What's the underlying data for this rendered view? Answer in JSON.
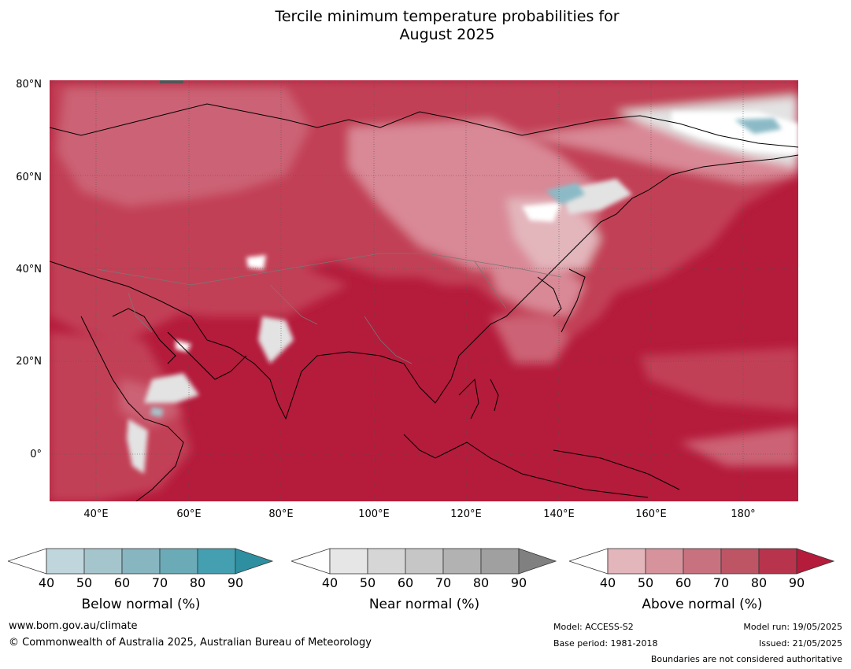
{
  "title": {
    "line1": "Tercile minimum temperature probabilities for",
    "line2": "August 2025"
  },
  "axes": {
    "lat_labels": [
      "80°N",
      "60°N",
      "40°N",
      "20°N",
      "0°"
    ],
    "lon_labels": [
      "40°E",
      "60°E",
      "80°E",
      "100°E",
      "120°E",
      "140°E",
      "160°E",
      "180°"
    ]
  },
  "legend": {
    "below": {
      "label": "Below normal (%)",
      "ticks": [
        "40",
        "50",
        "60",
        "70",
        "80",
        "90"
      ],
      "colors": [
        "#ffffff",
        "#c0d6dd",
        "#a5c5cc",
        "#87b5c0",
        "#6aabb7",
        "#44a0b0",
        "#2e8fa0"
      ]
    },
    "near": {
      "label": "Near normal (%)",
      "ticks": [
        "40",
        "50",
        "60",
        "70",
        "80",
        "90"
      ],
      "colors": [
        "#ffffff",
        "#e6e6e6",
        "#d6d6d6",
        "#c6c6c6",
        "#b2b2b2",
        "#a0a0a0",
        "#808080"
      ]
    },
    "above": {
      "label": "Above normal (%)",
      "ticks": [
        "40",
        "50",
        "60",
        "70",
        "80",
        "90"
      ],
      "colors": [
        "#ffffff",
        "#e3b6bc",
        "#d6939c",
        "#c87280",
        "#bd5565",
        "#b8344c",
        "#b51b3b"
      ]
    }
  },
  "footer": {
    "url": "www.bom.gov.au/climate",
    "copyright": "© Commonwealth of Australia 2025, Australian Bureau of Meteorology",
    "model": "Model: ACCESS-S2",
    "base_period": "Base period: 1981-2018",
    "model_run": "Model run: 19/05/2025",
    "issued": "Issued: 21/05/2025",
    "disclaimer": "Boundaries are not considered authoritative"
  },
  "map_colors": {
    "ocean_strong": "#b51b3b",
    "land_mid": "#c23f57",
    "land_light": "#cc6275",
    "land_pale": "#d98896",
    "near_light": "#e3e3e3",
    "below_blue": "#8bbac6"
  }
}
